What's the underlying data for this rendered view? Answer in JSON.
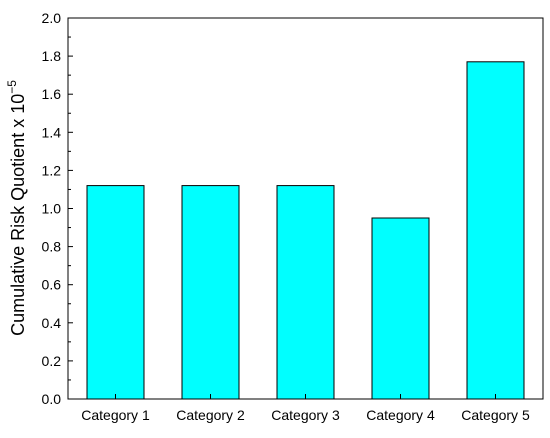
{
  "chart_data": {
    "type": "bar",
    "title": "",
    "xlabel": "",
    "ylabel": "Cumulative Risk Quotient x 10",
    "ylabel_exponent": "−5",
    "categories": [
      "Category 1",
      "Category 2",
      "Category 3",
      "Category 4",
      "Category 5"
    ],
    "values": [
      1.12,
      1.12,
      1.12,
      0.95,
      1.77
    ],
    "ylim": [
      0,
      2.0
    ],
    "yticks": [
      "0.0",
      "0.2",
      "0.4",
      "0.6",
      "0.8",
      "1.0",
      "1.2",
      "1.4",
      "1.6",
      "1.8",
      "2.0"
    ],
    "grid": false,
    "legend": "none",
    "colors": {
      "bar_fill": "#00ffff",
      "bar_stroke": "#000000",
      "axis": "#000000"
    }
  }
}
